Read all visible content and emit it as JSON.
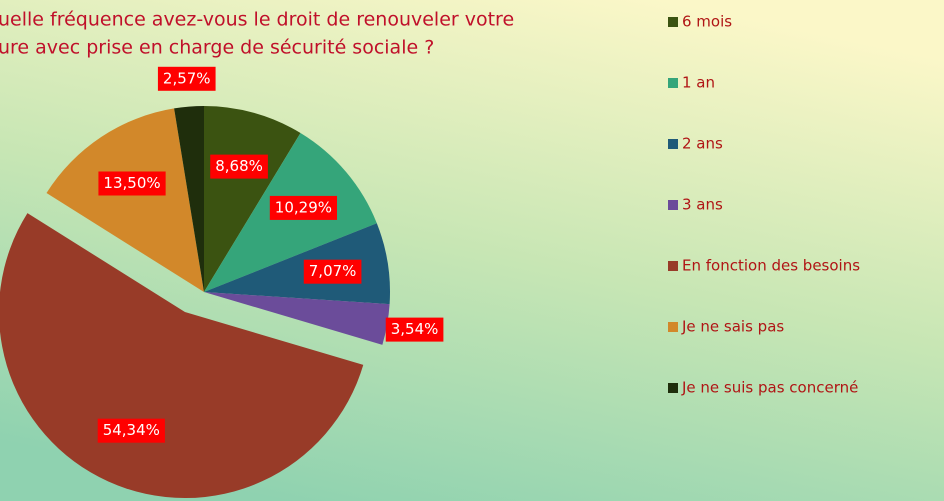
{
  "chart_data": {
    "type": "pie",
    "title_lines": [
      "uelle fréquence avez-vous le droit de renouveler votre",
      "ure avec prise en charge de sécurité sociale ?"
    ],
    "categories": [
      "6 mois",
      "1 an",
      "2 ans",
      "3 ans",
      "En fonction des besoins",
      "Je ne sais pas",
      "Je ne suis pas concerné"
    ],
    "values": [
      8.68,
      10.29,
      7.07,
      3.54,
      54.34,
      13.5,
      2.57
    ],
    "value_labels": [
      "8,68%",
      "10,29%",
      "7,07%",
      "3,54%",
      "54,34%",
      "13,50%",
      "2,57%"
    ],
    "colors": [
      "#3b5311",
      "#35a57a",
      "#1f5a78",
      "#6b4c9a",
      "#983b28",
      "#d2882a",
      "#1f2e0c"
    ],
    "legend": "right"
  }
}
